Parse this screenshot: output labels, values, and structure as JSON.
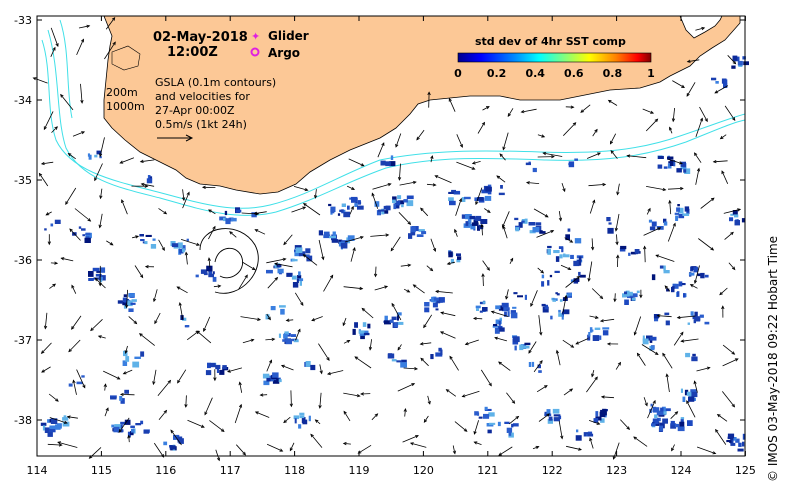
{
  "title": {
    "date": "02-May-2018",
    "time": "12:00Z"
  },
  "legend": {
    "glider": "Glider",
    "argo": "Argo",
    "glider_color": "#e020e0",
    "argo_color": "#e020e0"
  },
  "contours": {
    "c200": "200m",
    "c1000": "1000m",
    "color": "#40e0e8"
  },
  "gsla_note": {
    "line1": "GSLA (0.1m contours)",
    "line2": "and velocities for",
    "line3": "27-Apr 00:00Z",
    "line4": "0.5m/s (1kt 24h)"
  },
  "colorbar": {
    "title": "std dev of 4hr SST comp",
    "ticks": [
      "0",
      "0.2",
      "0.4",
      "0.6",
      "0.8",
      "1"
    ],
    "colors": [
      "#00008f",
      "#0000ff",
      "#0080ff",
      "#00ffff",
      "#80ff80",
      "#ffff00",
      "#ff8000",
      "#ff0000",
      "#800000"
    ]
  },
  "axes": {
    "x_ticks": [
      "114",
      "115",
      "116",
      "117",
      "118",
      "119",
      "120",
      "121",
      "122",
      "123",
      "124",
      "125"
    ],
    "y_ticks": [
      "-33",
      "-34",
      "-35",
      "-36",
      "-37",
      "-38"
    ]
  },
  "credit": "© IMOS 03-May-2018 09:22 Hobart Time",
  "colors": {
    "land": "#fcc896",
    "patch": "#1a3fb0",
    "arrow": "#000000"
  }
}
